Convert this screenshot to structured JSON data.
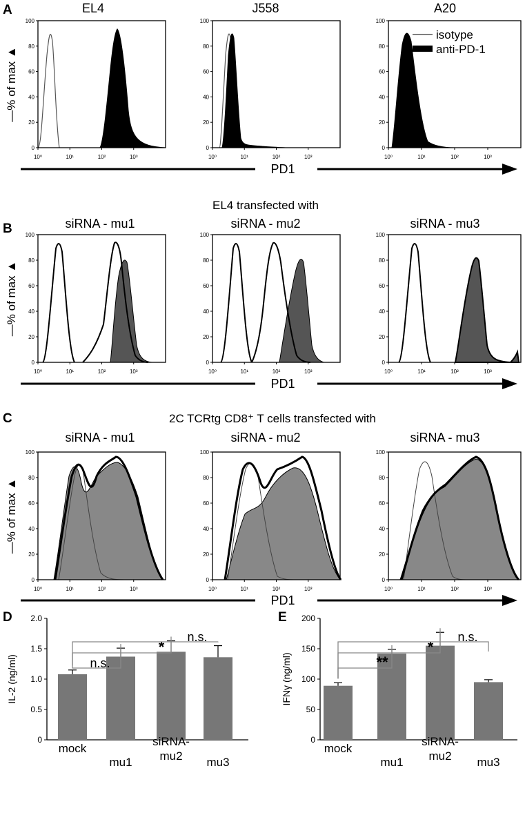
{
  "figure": {
    "panels": {
      "A": {
        "letter": "A",
        "titles": [
          "EL4",
          "J558",
          "A20"
        ],
        "subtitle": ""
      },
      "B": {
        "letter": "B",
        "titles": [
          "siRNA - mu1",
          "siRNA - mu2",
          "siRNA - mu3"
        ],
        "subtitle": "EL4 transfected with"
      },
      "C": {
        "letter": "C",
        "titles": [
          "siRNA - mu1",
          "siRNA - mu2",
          "siRNA - mu3"
        ],
        "subtitle": "2C TCRtg CD8⁺ T cells transfected with"
      },
      "D": {
        "letter": "D"
      },
      "E": {
        "letter": "E"
      }
    },
    "histogram_ylabel": "—% of max ▲",
    "histogram_xlabel": "PD1",
    "histogram_yticks": [
      "0",
      "20",
      "40",
      "60",
      "80",
      "100"
    ],
    "histogram_xticks": [
      "10⁰",
      "10¹",
      "10²",
      "10³"
    ],
    "legend": {
      "isotype": "isotype",
      "anti_pd1": "anti-PD-1"
    },
    "colors": {
      "anti_pd1_fill_A": "#000000",
      "histogram_fill_B": "#555555",
      "histogram_fill_C": "#888888",
      "bar_fill": "#777777",
      "isotype_line": "#444444"
    }
  },
  "chart_data": [
    {
      "type": "bar",
      "panel": "D",
      "title": "",
      "ylabel": "IL-2 (ng/ml)",
      "xlabel": "",
      "ylim": [
        0,
        2.0
      ],
      "yticks": [
        "0",
        "0.5",
        "1.0",
        "1.5",
        "2.0"
      ],
      "yticks_values": [
        0,
        0.5,
        1.0,
        1.5,
        2.0
      ],
      "categories": [
        "mock",
        "mu1",
        "siRNA-\nmu2",
        "mu3"
      ],
      "values": [
        1.08,
        1.37,
        1.45,
        1.36
      ],
      "errors": [
        0.07,
        0.14,
        0.18,
        0.19
      ],
      "significance": [
        {
          "from": "mock",
          "to": "mu1",
          "label": "n.s."
        },
        {
          "from": "mock",
          "to": "siRNA-mu2",
          "label": "*"
        },
        {
          "from": "mock",
          "to": "mu3",
          "label": "n.s."
        }
      ]
    },
    {
      "type": "bar",
      "panel": "E",
      "title": "",
      "ylabel": "IFNγ (ng/ml)",
      "xlabel": "",
      "ylim": [
        0,
        200
      ],
      "yticks": [
        "0",
        "50",
        "100",
        "150",
        "200"
      ],
      "yticks_values": [
        0,
        50,
        100,
        150,
        200
      ],
      "categories": [
        "mock",
        "mu1",
        "siRNA-\nmu2",
        "mu3"
      ],
      "values": [
        89,
        142,
        155,
        95
      ],
      "errors": [
        5,
        7,
        22,
        4
      ],
      "significance": [
        {
          "from": "mock",
          "to": "mu1",
          "label": "**"
        },
        {
          "from": "mock",
          "to": "siRNA-mu2",
          "label": "*"
        },
        {
          "from": "mock",
          "to": "mu3",
          "label": "n.s."
        }
      ]
    }
  ]
}
